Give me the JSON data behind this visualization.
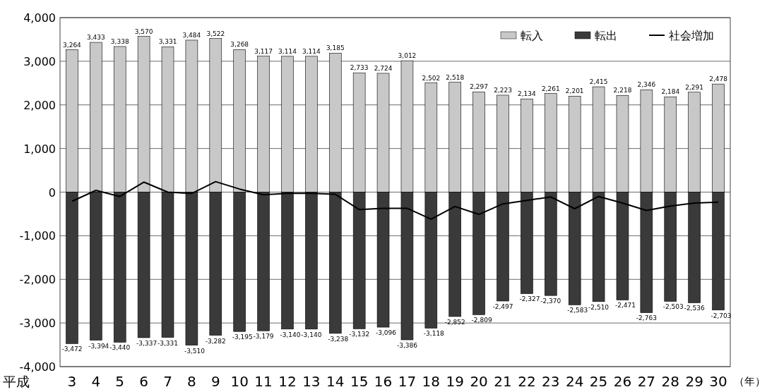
{
  "chart_data": {
    "type": "bar",
    "stacked": true,
    "categories": [
      "3",
      "4",
      "5",
      "6",
      "7",
      "8",
      "9",
      "10",
      "11",
      "12",
      "13",
      "14",
      "15",
      "16",
      "17",
      "18",
      "19",
      "20",
      "21",
      "22",
      "23",
      "24",
      "25",
      "26",
      "27",
      "28",
      "29",
      "30"
    ],
    "annotations": [
      "平成",
      "（年）"
    ],
    "series": [
      {
        "name": "転入",
        "color": "#c8c8c8",
        "values": [
          3264,
          3433,
          3338,
          3570,
          3331,
          3484,
          3522,
          3268,
          3117,
          3114,
          3114,
          3185,
          2733,
          2724,
          3012,
          2502,
          2518,
          2297,
          2223,
          2134,
          2261,
          2201,
          2415,
          2218,
          2346,
          2184,
          2291,
          2478
        ],
        "value_labels": [
          "3,264",
          "3,433",
          "3,338",
          "3,570",
          "3,331",
          "3,484",
          "3,522",
          "3,268",
          "3,117",
          "3,114",
          "3,114",
          "3,185",
          "2,733",
          "2,724",
          "3,012",
          "2,502",
          "2,518",
          "2,297",
          "2,223",
          "2,134",
          "2,261",
          "2,201",
          "2,415",
          "2,218",
          "2,346",
          "2,184",
          "2,291",
          "2,478"
        ]
      },
      {
        "name": "転出",
        "color": "#3a3a3a",
        "values": [
          -3472,
          -3394,
          -3440,
          -3337,
          -3331,
          -3510,
          -3282,
          -3195,
          -3179,
          -3140,
          -3140,
          -3238,
          -3132,
          -3096,
          -3386,
          -3118,
          -2852,
          -2809,
          -2497,
          -2327,
          -2370,
          -2583,
          -2510,
          -2471,
          -2763,
          -2503,
          -2536,
          -2703
        ],
        "value_labels": [
          "-3,472",
          "-3,394",
          "-3,440",
          "-3,337",
          "-3,331",
          "-3,510",
          "-3,282",
          "-3,195",
          "-3,179",
          "-3,140",
          "-3,140",
          "-3,238",
          "-3,132",
          "-3,096",
          "-3,386",
          "-3,118",
          "-2,852",
          "-2,809",
          "-2,497",
          "-2,327",
          "-2,370",
          "-2,583",
          "-2,510",
          "-2,471",
          "-2,763",
          "-2,503",
          "-2,536",
          "-2,703"
        ]
      },
      {
        "name": "社会増加",
        "type": "line",
        "color": "#000000",
        "values": [
          -210,
          40,
          -100,
          230,
          0,
          -30,
          240,
          70,
          -60,
          -30,
          -30,
          -50,
          -400,
          -370,
          -370,
          -620,
          -330,
          -510,
          -270,
          -190,
          -110,
          -380,
          -100,
          -250,
          -420,
          -320,
          -250,
          -230
        ]
      }
    ],
    "ylim": [
      -4000,
      4000
    ],
    "yticks": [
      {
        "value": 4000,
        "label": "4,000"
      },
      {
        "value": 3000,
        "label": "3,000"
      },
      {
        "value": 2000,
        "label": "2,000"
      },
      {
        "value": 1000,
        "label": "1,000"
      },
      0,
      {
        "value": -1000,
        "label": "-1,000"
      },
      {
        "value": -2000,
        "label": "-2,000"
      },
      {
        "value": -3000,
        "label": "-3,000"
      },
      {
        "value": -4000,
        "label": "-4,000"
      }
    ],
    "grid": "y",
    "legend": "top right",
    "marker": "none",
    "line_style": "solid"
  }
}
